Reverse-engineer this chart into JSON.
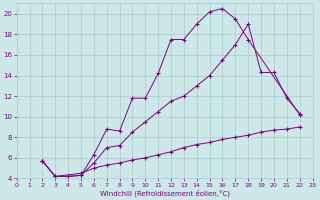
{
  "xlabel": "Windchill (Refroidissement éolien,°C)",
  "bg_color": "#cce8e8",
  "line_color": "#800080",
  "grid_color": "#aacccc",
  "xmin": 0,
  "xmax": 23,
  "ymin": 4,
  "ymax": 21,
  "yticks": [
    4,
    6,
    8,
    10,
    12,
    14,
    16,
    18,
    20
  ],
  "xticks": [
    0,
    1,
    2,
    3,
    4,
    5,
    6,
    7,
    8,
    9,
    10,
    11,
    12,
    13,
    14,
    15,
    16,
    17,
    18,
    19,
    20,
    21,
    22,
    23
  ],
  "curve1_x": [
    2,
    3,
    4,
    5,
    6,
    7,
    8,
    9,
    10,
    11,
    12,
    13,
    14,
    15,
    16,
    17,
    18,
    22
  ],
  "curve1_y": [
    5.7,
    4.2,
    4.2,
    4.3,
    6.3,
    8.8,
    8.6,
    11.8,
    11.8,
    14.2,
    17.5,
    17.5,
    19.0,
    20.2,
    20.5,
    19.5,
    17.5,
    10.2
  ],
  "curve2_x": [
    2,
    3,
    4,
    5,
    6,
    7,
    8,
    9,
    10,
    11,
    12,
    13,
    14,
    15,
    16,
    17,
    18,
    19,
    20,
    21,
    22
  ],
  "curve2_y": [
    5.7,
    4.2,
    4.2,
    4.3,
    5.5,
    7.0,
    7.2,
    8.5,
    9.5,
    10.5,
    11.5,
    12.0,
    13.0,
    14.0,
    15.5,
    17.0,
    19.0,
    14.3,
    14.3,
    11.8,
    10.3
  ],
  "curve3_x": [
    2,
    3,
    5,
    6,
    7,
    8,
    9,
    10,
    11,
    12,
    13,
    14,
    15,
    16,
    17,
    18,
    19,
    20,
    21,
    22
  ],
  "curve3_y": [
    5.7,
    4.2,
    4.5,
    5.0,
    5.3,
    5.5,
    5.8,
    6.0,
    6.3,
    6.6,
    7.0,
    7.3,
    7.5,
    7.8,
    8.0,
    8.2,
    8.5,
    8.7,
    8.8,
    9.0
  ]
}
